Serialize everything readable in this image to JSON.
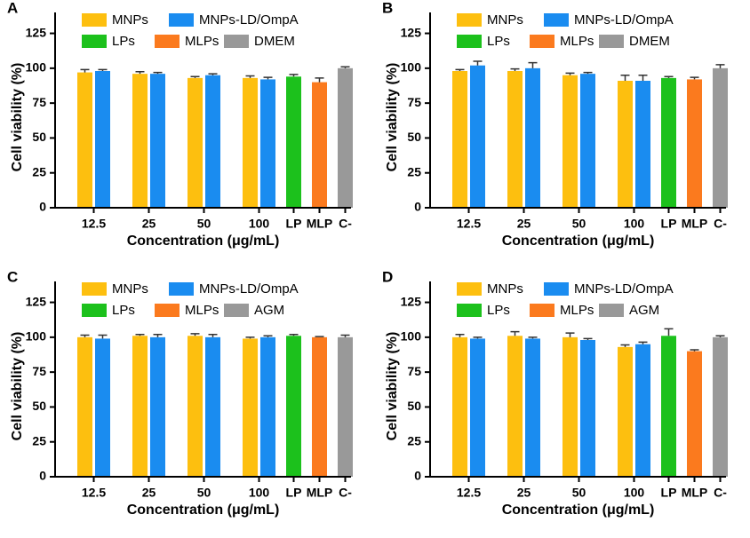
{
  "chart_data": [
    {
      "type": "bar",
      "panel_label": "A",
      "ylabel": "Cell viability (%)",
      "xlabel": "Concentration (μg/mL)",
      "categories": [
        "12.5",
        "25",
        "50",
        "100",
        "LP",
        "MLP",
        "C-"
      ],
      "ylim": [
        0,
        140
      ],
      "yticks": [
        0,
        25,
        50,
        75,
        100,
        125
      ],
      "series": [
        {
          "name": "MNPs",
          "color": "#fdbf0f",
          "values": [
            97,
            96,
            93,
            93,
            null,
            null,
            null
          ],
          "errors": [
            2,
            1.5,
            1,
            1.5,
            null,
            null,
            null
          ]
        },
        {
          "name": "MNPs-LD/OmpA",
          "color": "#1a8cf0",
          "values": [
            98,
            96,
            95,
            92,
            null,
            null,
            null
          ],
          "errors": [
            1,
            1,
            1,
            1.5,
            null,
            null,
            null
          ]
        },
        {
          "name": "LPs",
          "color": "#1cc11c",
          "values": [
            null,
            null,
            null,
            null,
            94,
            null,
            null
          ],
          "errors": [
            null,
            null,
            null,
            null,
            1.5,
            null,
            null
          ]
        },
        {
          "name": "MLPs",
          "color": "#fb7a1e",
          "values": [
            null,
            null,
            null,
            null,
            null,
            90,
            null
          ],
          "errors": [
            null,
            null,
            null,
            null,
            null,
            3,
            null
          ]
        },
        {
          "name": "DMEM",
          "color": "#999999",
          "values": [
            null,
            null,
            null,
            null,
            null,
            null,
            100
          ],
          "errors": [
            null,
            null,
            null,
            null,
            null,
            null,
            1
          ]
        }
      ]
    },
    {
      "type": "bar",
      "panel_label": "B",
      "ylabel": "Cell viability (%)",
      "xlabel": "Concentration (μg/mL)",
      "categories": [
        "12.5",
        "25",
        "50",
        "100",
        "LP",
        "MLP",
        "C-"
      ],
      "ylim": [
        0,
        140
      ],
      "yticks": [
        0,
        25,
        50,
        75,
        100,
        125
      ],
      "series": [
        {
          "name": "MNPs",
          "color": "#fdbf0f",
          "values": [
            98,
            98,
            95,
            91,
            null,
            null,
            null
          ],
          "errors": [
            1,
            1.5,
            1.5,
            4,
            null,
            null,
            null
          ]
        },
        {
          "name": "MNPs-LD/OmpA",
          "color": "#1a8cf0",
          "values": [
            102,
            100,
            96,
            91,
            null,
            null,
            null
          ],
          "errors": [
            3,
            4,
            1,
            4,
            null,
            null,
            null
          ]
        },
        {
          "name": "LPs",
          "color": "#1cc11c",
          "values": [
            null,
            null,
            null,
            null,
            93,
            null,
            null
          ],
          "errors": [
            null,
            null,
            null,
            null,
            1,
            null,
            null
          ]
        },
        {
          "name": "MLPs",
          "color": "#fb7a1e",
          "values": [
            null,
            null,
            null,
            null,
            null,
            92,
            null
          ],
          "errors": [
            null,
            null,
            null,
            null,
            null,
            1.5,
            null
          ]
        },
        {
          "name": "DMEM",
          "color": "#999999",
          "values": [
            null,
            null,
            null,
            null,
            null,
            null,
            100
          ],
          "errors": [
            null,
            null,
            null,
            null,
            null,
            null,
            2.5
          ]
        }
      ]
    },
    {
      "type": "bar",
      "panel_label": "C",
      "ylabel": "Cell viability (%)",
      "xlabel": "Concentration (μg/mL)",
      "categories": [
        "12.5",
        "25",
        "50",
        "100",
        "LP",
        "MLP",
        "C-"
      ],
      "ylim": [
        0,
        140
      ],
      "yticks": [
        0,
        25,
        50,
        75,
        100,
        125
      ],
      "series": [
        {
          "name": "MNPs",
          "color": "#fdbf0f",
          "values": [
            100,
            101,
            101,
            99,
            null,
            null,
            null
          ],
          "errors": [
            1.5,
            1,
            1.5,
            1,
            null,
            null,
            null
          ]
        },
        {
          "name": "MNPs-LD/OmpA",
          "color": "#1a8cf0",
          "values": [
            99,
            100,
            100,
            100,
            null,
            null,
            null
          ],
          "errors": [
            2.5,
            2,
            2,
            1,
            null,
            null,
            null
          ]
        },
        {
          "name": "LPs",
          "color": "#1cc11c",
          "values": [
            null,
            null,
            null,
            null,
            101,
            null,
            null
          ],
          "errors": [
            null,
            null,
            null,
            null,
            1,
            null,
            null
          ]
        },
        {
          "name": "MLPs",
          "color": "#fb7a1e",
          "values": [
            null,
            null,
            null,
            null,
            null,
            100,
            null
          ],
          "errors": [
            null,
            null,
            null,
            null,
            null,
            0.5,
            null
          ]
        },
        {
          "name": "AGM",
          "color": "#999999",
          "values": [
            null,
            null,
            null,
            null,
            null,
            null,
            100
          ],
          "errors": [
            null,
            null,
            null,
            null,
            null,
            null,
            1.5
          ]
        }
      ]
    },
    {
      "type": "bar",
      "panel_label": "D",
      "ylabel": "Cell viability (%)",
      "xlabel": "Concentration (μg/mL)",
      "categories": [
        "12.5",
        "25",
        "50",
        "100",
        "LP",
        "MLP",
        "C-"
      ],
      "ylim": [
        0,
        140
      ],
      "yticks": [
        0,
        25,
        50,
        75,
        100,
        125
      ],
      "series": [
        {
          "name": "MNPs",
          "color": "#fdbf0f",
          "values": [
            100,
            101,
            100,
            93,
            null,
            null,
            null
          ],
          "errors": [
            2,
            3,
            3,
            1.5,
            null,
            null,
            null
          ]
        },
        {
          "name": "MNPs-LD/OmpA",
          "color": "#1a8cf0",
          "values": [
            99,
            99,
            98,
            95,
            null,
            null,
            null
          ],
          "errors": [
            1,
            1,
            1,
            1.5,
            null,
            null,
            null
          ]
        },
        {
          "name": "LPs",
          "color": "#1cc11c",
          "values": [
            null,
            null,
            null,
            null,
            101,
            null,
            null
          ],
          "errors": [
            null,
            null,
            null,
            null,
            5,
            null,
            null
          ]
        },
        {
          "name": "MLPs",
          "color": "#fb7a1e",
          "values": [
            null,
            null,
            null,
            null,
            null,
            90,
            null
          ],
          "errors": [
            null,
            null,
            null,
            null,
            null,
            1,
            null
          ]
        },
        {
          "name": "AGM",
          "color": "#999999",
          "values": [
            null,
            null,
            null,
            null,
            null,
            null,
            100
          ],
          "errors": [
            null,
            null,
            null,
            null,
            null,
            null,
            1
          ]
        }
      ]
    }
  ]
}
